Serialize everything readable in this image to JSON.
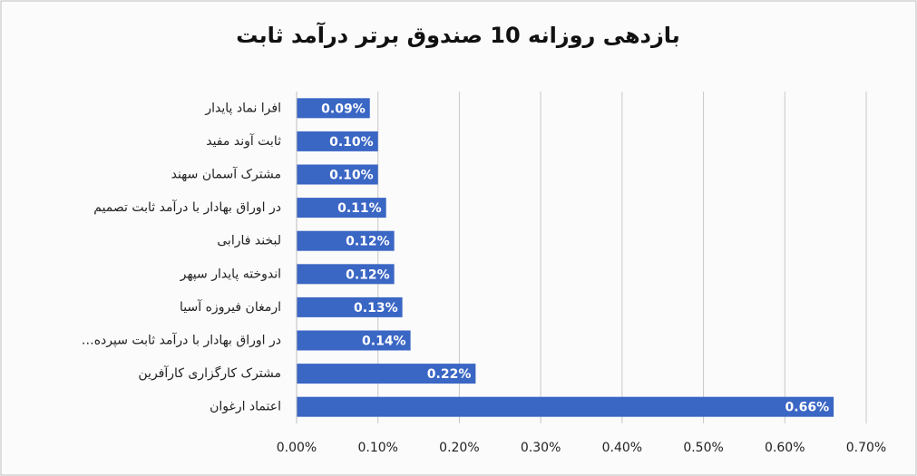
{
  "chart_data": {
    "type": "bar",
    "orientation": "horizontal",
    "title": "بازدهی روزانه 10 صندوق برتر درآمد ثابت",
    "categories": [
      "افرا نماد پایدار",
      "ثابت آوند مفید",
      "مشترک آسمان سهند",
      "در اوراق بهادار با درآمد ثابت تصمیم",
      "لبخند فارابی",
      "اندوخته پایدار سپهر",
      "ارمغان فیروزه آسیا",
      "در اوراق بهادار با درآمد ثابت سپرده…",
      "مشترک کارگزاری کارآفرین",
      "اعتماد ارغوان"
    ],
    "values": [
      0.09,
      0.1,
      0.1,
      0.11,
      0.12,
      0.12,
      0.13,
      0.14,
      0.22,
      0.66
    ],
    "value_labels": [
      "0.09%",
      "0.10%",
      "0.10%",
      "0.11%",
      "0.12%",
      "0.12%",
      "0.13%",
      "0.14%",
      "0.22%",
      "0.66%"
    ],
    "color": "#3a66c4",
    "xlim": [
      0,
      0.7
    ],
    "xticks": [
      {
        "value": 0,
        "label": "0.00%"
      },
      {
        "value": 0.1,
        "label": "0.10%"
      },
      {
        "value": 0.2,
        "label": "0.20%"
      },
      {
        "value": 0.3,
        "label": "0.30%"
      },
      {
        "value": 0.4,
        "label": "0.40%"
      },
      {
        "value": 0.5,
        "label": "0.50%"
      },
      {
        "value": 0.6,
        "label": "0.60%"
      },
      {
        "value": 0.7,
        "label": "0.70%"
      }
    ],
    "grid": true
  }
}
